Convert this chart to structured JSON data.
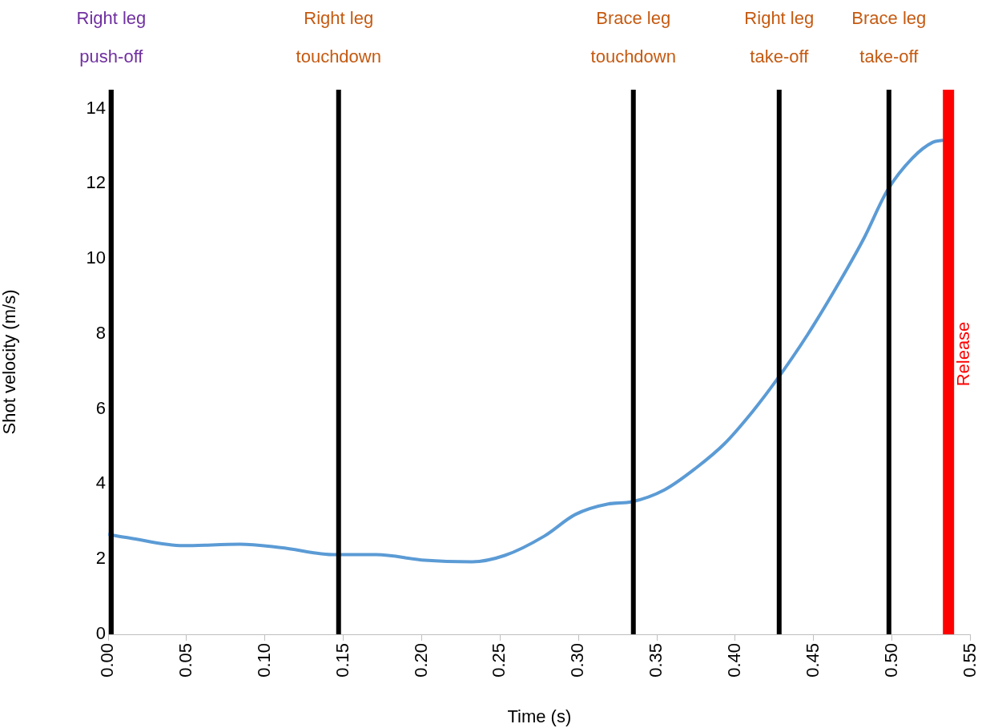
{
  "chart_data": {
    "type": "line",
    "xlabel": "Time (s)",
    "ylabel": "Shot velocity (m/s)",
    "x": [
      0.0,
      0.013,
      0.048,
      0.084,
      0.11,
      0.145,
      0.171,
      0.202,
      0.232,
      0.253,
      0.278,
      0.298,
      0.319,
      0.334,
      0.355,
      0.375,
      0.393,
      0.411,
      0.426,
      0.446,
      0.467,
      0.482,
      0.497,
      0.513,
      0.526,
      0.532
    ],
    "series": [
      {
        "color": "#5b9bd5",
        "values": [
          2.66,
          2.57,
          2.36,
          2.4,
          2.31,
          2.12,
          2.12,
          1.97,
          1.93,
          2.1,
          2.61,
          3.19,
          3.47,
          3.53,
          3.85,
          4.43,
          5.07,
          5.93,
          6.75,
          7.97,
          9.42,
          10.54,
          11.82,
          12.68,
          13.1,
          13.15
        ]
      }
    ],
    "xlim": [
      0,
      0.55
    ],
    "xticks": [
      {
        "value": 0,
        "label": "0.00"
      },
      {
        "value": 0.05,
        "label": "0.05"
      },
      {
        "value": 0.1,
        "label": "0.10"
      },
      {
        "value": 0.15,
        "label": "0.15"
      },
      {
        "value": 0.2,
        "label": "0.20"
      },
      {
        "value": 0.25,
        "label": "0.25"
      },
      {
        "value": 0.3,
        "label": "0.30"
      },
      {
        "value": 0.35,
        "label": "0.35"
      },
      {
        "value": 0.4,
        "label": "0.40"
      },
      {
        "value": 0.45,
        "label": "0.45"
      },
      {
        "value": 0.5,
        "label": "0.50"
      },
      {
        "value": 0.55,
        "label": "0.55"
      }
    ],
    "ylim": [
      0,
      14.5
    ],
    "yticks": [
      0,
      2,
      4,
      6,
      8,
      10,
      12,
      14
    ],
    "grid": false,
    "legend": false,
    "marker": "none",
    "line_style": "solid",
    "ref_lines": [
      {
        "axis": "x",
        "value": 0.002,
        "label": "Right leg push-off",
        "color": "#000000"
      },
      {
        "axis": "x",
        "value": 0.147,
        "label": "Right leg touchdown",
        "color": "#000000"
      },
      {
        "axis": "x",
        "value": 0.335,
        "label": "Brace leg touchdown",
        "color": "#000000"
      },
      {
        "axis": "x",
        "value": 0.428,
        "label": "Right leg take-off",
        "color": "#000000"
      },
      {
        "axis": "x",
        "value": 0.498,
        "label": "Brace leg take-off",
        "color": "#000000"
      },
      {
        "axis": "x",
        "value": 0.536,
        "label": "Release",
        "color": "#ff0000"
      }
    ]
  }
}
